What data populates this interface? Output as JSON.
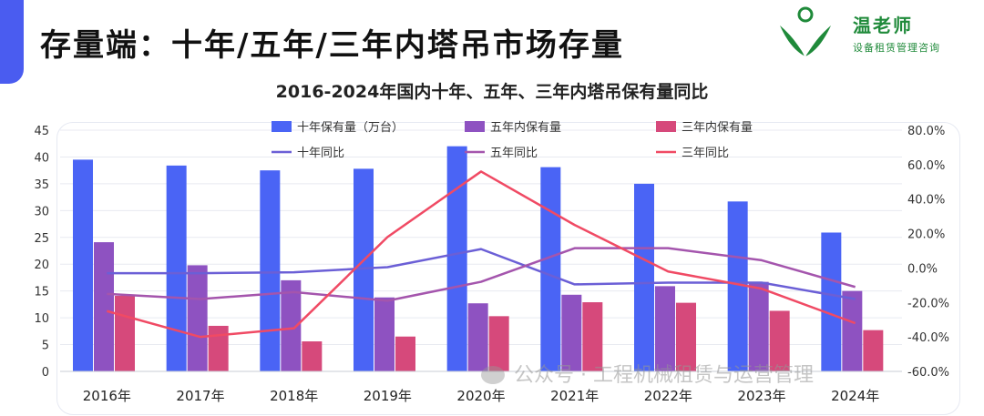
{
  "page": {
    "title": "存量端：十年/五年/三年内塔吊市场存量"
  },
  "brand": {
    "name": "温老师",
    "tagline": "设备租赁管理咨询"
  },
  "watermark": {
    "text": "公众号 · 工程机械租赁与运营管理"
  },
  "colors": {
    "accent": "#4a5cf0",
    "ten_year_bar": "#4a64f5",
    "five_year_bar": "#8e52c1",
    "three_year_bar": "#d6497b",
    "ten_year_line": "#6b5fd6",
    "five_year_line": "#a455ad",
    "three_year_line": "#f04a64",
    "brand_green": "#1f8a3a"
  },
  "chart_data": {
    "type": "bar",
    "title": "2016-2024年国内十年、五年、三年内塔吊保有量同比",
    "categories": [
      "2016年",
      "2017年",
      "2018年",
      "2019年",
      "2020年",
      "2021年",
      "2022年",
      "2023年",
      "2024年"
    ],
    "y_left": {
      "min": 0,
      "max": 45,
      "step": 5,
      "ticks": [
        "0",
        "5",
        "10",
        "15",
        "20",
        "25",
        "30",
        "35",
        "40",
        "45"
      ]
    },
    "y_right": {
      "min": -60,
      "max": 80,
      "step": 20,
      "ticks": [
        "-60.0%",
        "-40.0%",
        "-20.0%",
        "0.0%",
        "20.0%",
        "40.0%",
        "60.0%",
        "80.0%"
      ]
    },
    "legend_position": "top",
    "grid": true,
    "series": [
      {
        "name": "十年保有量（万台）",
        "kind": "bar",
        "axis": "left",
        "color": "#4a64f5",
        "values": [
          39.5,
          38.4,
          37.5,
          37.8,
          42.0,
          38.1,
          35.0,
          31.7,
          25.9
        ]
      },
      {
        "name": "五年内保有量",
        "kind": "bar",
        "axis": "left",
        "color": "#8e52c1",
        "values": [
          24.1,
          19.8,
          17.0,
          13.8,
          12.7,
          14.3,
          15.9,
          16.7,
          15.0
        ]
      },
      {
        "name": "三年内保有量",
        "kind": "bar",
        "axis": "left",
        "color": "#d6497b",
        "values": [
          14.1,
          8.5,
          5.6,
          6.5,
          10.3,
          12.9,
          12.8,
          11.3,
          7.7
        ]
      },
      {
        "name": "十年同比",
        "kind": "line",
        "axis": "right",
        "color": "#6b5fd6",
        "values": [
          -3.0,
          -3.0,
          -2.5,
          0.5,
          11.0,
          -9.5,
          -8.5,
          -8.5,
          -18.0
        ]
      },
      {
        "name": "五年同比",
        "kind": "line",
        "axis": "right",
        "color": "#a455ad",
        "values": [
          -15.0,
          -18.0,
          -14.0,
          -19.0,
          -8.0,
          11.5,
          11.5,
          4.5,
          -11.0
        ]
      },
      {
        "name": "三年同比",
        "kind": "line",
        "axis": "right",
        "color": "#f04a64",
        "values": [
          -25.0,
          -40.0,
          -35.0,
          18.0,
          56.0,
          25.0,
          -2.0,
          -12.0,
          -32.0
        ]
      }
    ]
  }
}
